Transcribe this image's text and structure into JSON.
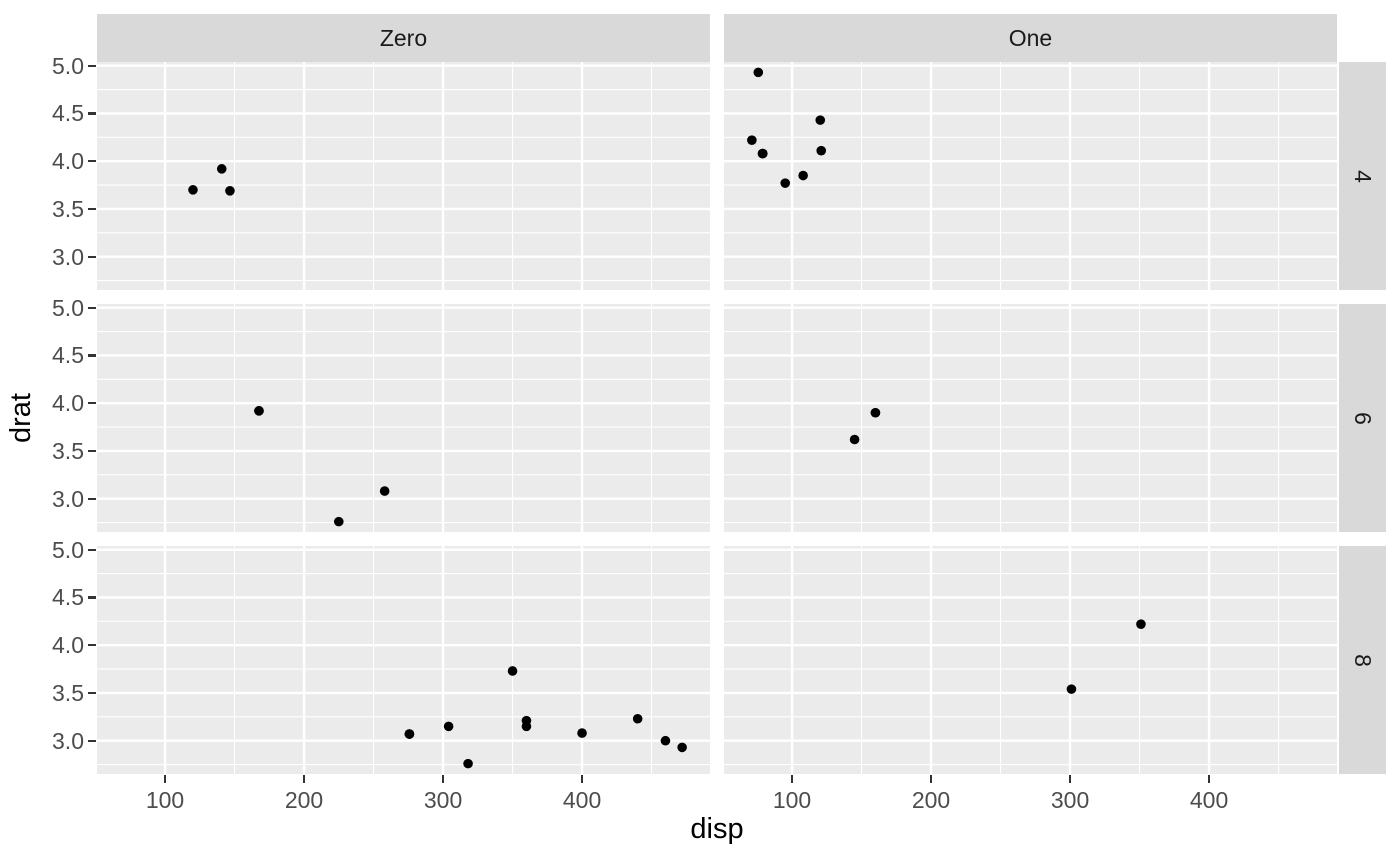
{
  "chart_data": {
    "type": "scatter",
    "title": "",
    "xlabel": "disp",
    "ylabel": "drat",
    "legend_position": "none",
    "grid": "on",
    "facet_cols": [
      "Zero",
      "One"
    ],
    "facet_rows": [
      "4",
      "6",
      "8"
    ],
    "x_axis": {
      "limits": [
        51.055,
        492.045
      ],
      "breaks": [
        100,
        200,
        300,
        400
      ],
      "labels": [
        "100",
        "200",
        "300",
        "400"
      ],
      "minor_breaks": [
        150,
        250,
        350,
        450
      ]
    },
    "y_axis": {
      "limits": [
        2.6515,
        5.0385
      ],
      "breaks": [
        5.0,
        4.5,
        4.0,
        3.5,
        3.0
      ],
      "labels": [
        "5.0",
        "4.5",
        "4.0",
        "3.5",
        "3.0"
      ],
      "minor_breaks": [
        2.75,
        3.25,
        3.75,
        4.25,
        4.75
      ]
    },
    "panels": [
      {
        "col": "Zero",
        "row": "4",
        "points": [
          [
            120.1,
            3.7
          ],
          [
            140.8,
            3.92
          ],
          [
            146.7,
            3.69
          ]
        ]
      },
      {
        "col": "Zero",
        "row": "6",
        "points": [
          [
            167.6,
            3.92
          ],
          [
            167.6,
            3.92
          ],
          [
            225.0,
            2.76
          ],
          [
            258.0,
            3.08
          ]
        ]
      },
      {
        "col": "Zero",
        "row": "8",
        "points": [
          [
            275.8,
            3.07
          ],
          [
            275.8,
            3.07
          ],
          [
            275.8,
            3.07
          ],
          [
            304.0,
            3.15
          ],
          [
            318.0,
            2.76
          ],
          [
            350.0,
            3.73
          ],
          [
            360.0,
            3.15
          ],
          [
            360.0,
            3.21
          ],
          [
            400.0,
            3.08
          ],
          [
            440.0,
            3.23
          ],
          [
            460.0,
            3.0
          ],
          [
            472.0,
            2.93
          ]
        ]
      },
      {
        "col": "One",
        "row": "4",
        "points": [
          [
            71.1,
            4.22
          ],
          [
            75.7,
            4.93
          ],
          [
            78.7,
            4.08
          ],
          [
            79.0,
            4.08
          ],
          [
            95.1,
            3.77
          ],
          [
            108.0,
            3.85
          ],
          [
            120.3,
            4.43
          ],
          [
            121.0,
            4.11
          ]
        ]
      },
      {
        "col": "One",
        "row": "6",
        "points": [
          [
            145.0,
            3.62
          ],
          [
            160.0,
            3.9
          ],
          [
            160.0,
            3.9
          ]
        ]
      },
      {
        "col": "One",
        "row": "8",
        "points": [
          [
            301.0,
            3.54
          ],
          [
            351.0,
            4.22
          ]
        ]
      }
    ],
    "style": {
      "panel_background": "#EBEBEB",
      "strip_background": "#D9D9D9",
      "gridline_color": "#FFFFFF",
      "point_color": "#000000",
      "tick_label_color": "#4D4D4D",
      "strip_text_color": "#1A1A1A",
      "axis_title_color": "#000000",
      "tick_mark_color": "#333333"
    }
  }
}
